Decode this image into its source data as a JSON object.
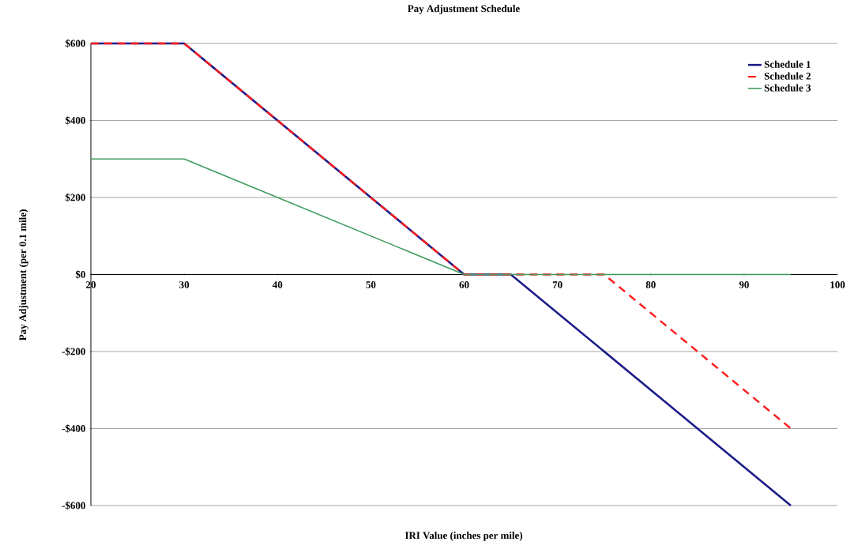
{
  "chart_data": {
    "type": "line",
    "title": "Pay Adjustment Schedule",
    "xlabel": "IRI Value (inches per mile)",
    "ylabel": "Pay Adjustment (per 0.1 mile)",
    "xlim": [
      20,
      100
    ],
    "xticks": [
      20,
      30,
      40,
      50,
      60,
      70,
      80,
      90,
      100
    ],
    "ylim": [
      -600,
      600
    ],
    "yticks": [
      {
        "value": -600,
        "label": "-$600"
      },
      {
        "value": -400,
        "label": "-$400"
      },
      {
        "value": -200,
        "label": "-$200"
      },
      {
        "value": 0,
        "label": "$0"
      },
      {
        "value": 200,
        "label": "$200"
      },
      {
        "value": 400,
        "label": "$400"
      },
      {
        "value": 600,
        "label": "$600"
      }
    ],
    "grid": "y",
    "legend": "top right",
    "series": [
      {
        "name": "Schedule 1",
        "color": "#1c1c8a",
        "line_style": "solid",
        "x": [
          20,
          30,
          60,
          65,
          95
        ],
        "values": [
          600,
          600,
          0,
          0,
          -600
        ]
      },
      {
        "name": "Schedule 2",
        "color": "#ff1a1a",
        "line_style": "dashed",
        "x": [
          20,
          30,
          60,
          75,
          95
        ],
        "values": [
          600,
          600,
          0,
          0,
          -400
        ]
      },
      {
        "name": "Schedule 3",
        "color": "#3c9c5c",
        "line_style": "solid",
        "x": [
          20,
          30,
          60,
          95
        ],
        "values": [
          300,
          300,
          0,
          0
        ]
      }
    ]
  }
}
